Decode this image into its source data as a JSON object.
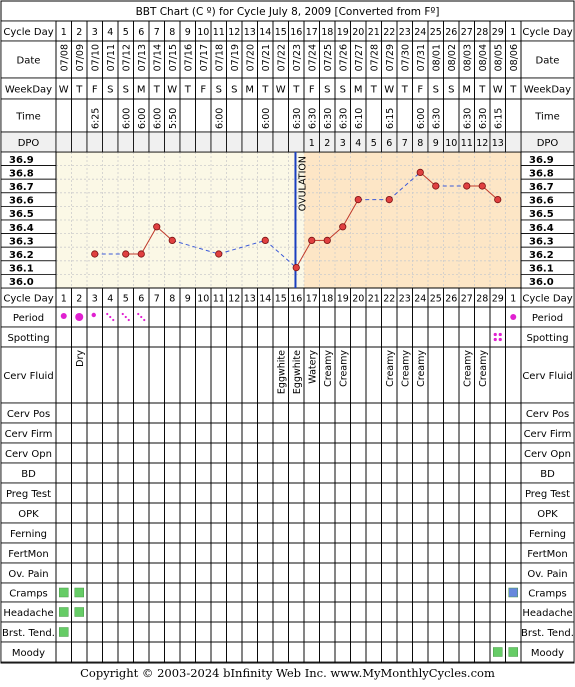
{
  "chart_data": {
    "type": "line",
    "title": "BBT Chart (C º) for Cycle July 8, 2009  [Converted from Fº]",
    "row_labels": {
      "cycle_day": "Cycle Day",
      "date": "Date",
      "weekday": "WeekDay",
      "time": "Time",
      "dpo": "DPO",
      "period": "Period",
      "spotting": "Spotting",
      "cerv_fluid": "Cerv Fluid",
      "cerv_pos": "Cerv Pos",
      "cerv_firm": "Cerv Firm",
      "cerv_opn": "Cerv Opn",
      "bd": "BD",
      "preg_test": "Preg Test",
      "opk": "OPK",
      "ferning": "Ferning",
      "fertmon": "FertMon",
      "ov_pain": "Ov. Pain",
      "cramps": "Cramps",
      "headache": "Headache",
      "brst_tend": "Brst. Tend.",
      "moody": "Moody"
    },
    "cycle_days": [
      "1",
      "2",
      "3",
      "4",
      "5",
      "6",
      "7",
      "8",
      "9",
      "10",
      "11",
      "12",
      "13",
      "14",
      "15",
      "16",
      "17",
      "18",
      "19",
      "20",
      "21",
      "22",
      "23",
      "24",
      "25",
      "26",
      "27",
      "28",
      "29",
      "1"
    ],
    "dates": [
      "07/08",
      "07/09",
      "07/10",
      "07/11",
      "07/12",
      "07/13",
      "07/14",
      "07/15",
      "07/16",
      "07/17",
      "07/18",
      "07/19",
      "07/20",
      "07/21",
      "07/22",
      "07/23",
      "07/24",
      "07/25",
      "07/26",
      "07/27",
      "07/28",
      "07/29",
      "07/30",
      "07/31",
      "08/01",
      "08/02",
      "08/03",
      "08/04",
      "08/05",
      "08/06"
    ],
    "weekdays": [
      "W",
      "T",
      "F",
      "S",
      "S",
      "M",
      "T",
      "W",
      "T",
      "F",
      "S",
      "S",
      "M",
      "T",
      "W",
      "T",
      "F",
      "S",
      "S",
      "M",
      "T",
      "W",
      "T",
      "F",
      "S",
      "S",
      "M",
      "T",
      "W",
      "T"
    ],
    "times": [
      "",
      "",
      "6:25",
      "",
      "6:00",
      "6:00",
      "6:00",
      "5:50",
      "",
      "",
      "6:00",
      "",
      "",
      "6:00",
      "",
      "6:30",
      "6:30",
      "6:30",
      "6:30",
      "6:10",
      "",
      "6:15",
      "",
      "6:00",
      "6:30",
      "",
      "6:30",
      "6:30",
      "6:15",
      ""
    ],
    "dpo": [
      "",
      "",
      "",
      "",
      "",
      "",
      "",
      "",
      "",
      "",
      "",
      "",
      "",
      "",
      "",
      "",
      "1",
      "2",
      "3",
      "4",
      "5",
      "6",
      "7",
      "8",
      "9",
      "10",
      "11",
      "12",
      "13",
      ""
    ],
    "y_ticks": [
      "36.9",
      "36.8",
      "36.7",
      "36.6",
      "36.5",
      "36.4",
      "36.3",
      "36.2",
      "36.1",
      "36.0"
    ],
    "ylim": [
      36.0,
      36.9
    ],
    "temperatures": [
      null,
      null,
      36.2,
      null,
      36.2,
      36.2,
      36.4,
      36.3,
      null,
      null,
      36.2,
      null,
      null,
      36.3,
      null,
      36.1,
      36.3,
      36.3,
      36.4,
      36.6,
      null,
      36.6,
      null,
      36.8,
      36.7,
      null,
      36.7,
      36.7,
      36.6,
      null
    ],
    "ovulation_label": "OVULATION",
    "ovulation_day_index": 15,
    "cerv_fluid": [
      "",
      "Dry",
      "",
      "",
      "",
      "",
      "",
      "",
      "",
      "",
      "",
      "",
      "",
      "",
      "Eggwhite",
      "Eggwhite",
      "Watery",
      "Creamy",
      "Creamy",
      "",
      "",
      "Creamy",
      "Creamy",
      "Creamy",
      "",
      "",
      "Creamy",
      "Creamy",
      "",
      ""
    ],
    "period": [
      "heavy",
      "heavy",
      "medium",
      "light",
      "light",
      "light",
      "",
      "",
      "",
      "",
      "",
      "",
      "",
      "",
      "",
      "",
      "",
      "",
      "",
      "",
      "",
      "",
      "",
      "",
      "",
      "",
      "",
      "",
      "",
      "heavy"
    ],
    "spotting": [
      "",
      "",
      "",
      "",
      "",
      "",
      "",
      "",
      "",
      "",
      "",
      "",
      "",
      "",
      "",
      "",
      "",
      "",
      "",
      "",
      "",
      "",
      "",
      "",
      "",
      "",
      "",
      "",
      "spot",
      ""
    ],
    "cramps": [
      "green",
      "green",
      "",
      "",
      "",
      "",
      "",
      "",
      "",
      "",
      "",
      "",
      "",
      "",
      "",
      "",
      "",
      "",
      "",
      "",
      "",
      "",
      "",
      "",
      "",
      "",
      "",
      "",
      "",
      "blue"
    ],
    "headache": [
      "green",
      "green",
      "",
      "",
      "",
      "",
      "",
      "",
      "",
      "",
      "",
      "",
      "",
      "",
      "",
      "",
      "",
      "",
      "",
      "",
      "",
      "",
      "",
      "",
      "",
      "",
      "",
      "",
      "",
      ""
    ],
    "brst_tend": [
      "green",
      "",
      "",
      "",
      "",
      "",
      "",
      "",
      "",
      "",
      "",
      "",
      "",
      "",
      "",
      "",
      "",
      "",
      "",
      "",
      "",
      "",
      "",
      "",
      "",
      "",
      "",
      "",
      "",
      ""
    ],
    "moody": [
      "",
      "",
      "",
      "",
      "",
      "",
      "",
      "",
      "",
      "",
      "",
      "",
      "",
      "",
      "",
      "",
      "",
      "",
      "",
      "",
      "",
      "",
      "",
      "",
      "",
      "",
      "",
      "",
      "green",
      "green"
    ],
    "colors": {
      "follicular_bg": "#fbf8e6",
      "luteal_bg": "#fde6c6",
      "header_bg": "#f0f0f0",
      "grid": "#000000",
      "grid_dash": "#cccccc",
      "line": "#c0392b",
      "dot": "#e04040",
      "dash_line": "#3c5ad8",
      "ovulation": "#1a3fbf",
      "period_dot": "#e020d0",
      "square_green": "#66cc66",
      "square_blue": "#6688dd"
    }
  },
  "footer": "Copyright © 2003-2024 bInfinity Web Inc.    www.MyMonthlyCycles.com"
}
